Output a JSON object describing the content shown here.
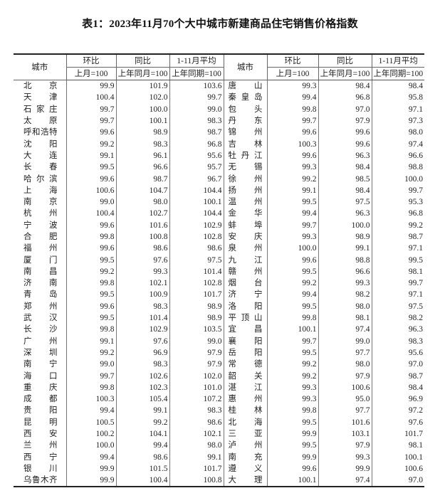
{
  "title": "表1：2023年11月70个大中城市新建商品住宅销售价格指数",
  "headers": {
    "city": "城市",
    "mom": "环比",
    "yoy": "同比",
    "avg": "1-11月平均",
    "mom_base": "上月=100",
    "yoy_base": "上年同月=100",
    "avg_base": "上年同期=100"
  },
  "rows": [
    {
      "left": [
        "北京",
        "99.9",
        "101.9",
        "103.6"
      ],
      "right": [
        "唐山",
        "99.3",
        "98.4",
        "98.4"
      ]
    },
    {
      "left": [
        "天津",
        "100.4",
        "102.0",
        "99.7"
      ],
      "right": [
        "秦皇岛",
        "99.4",
        "96.8",
        "95.8"
      ]
    },
    {
      "left": [
        "石家庄",
        "99.7",
        "100.0",
        "99.0"
      ],
      "right": [
        "包头",
        "99.8",
        "97.0",
        "97.1"
      ]
    },
    {
      "left": [
        "太原",
        "99.7",
        "100.1",
        "98.3"
      ],
      "right": [
        "丹东",
        "99.7",
        "97.9",
        "97.3"
      ]
    },
    {
      "left": [
        "呼和浩特",
        "99.6",
        "98.9",
        "98.7"
      ],
      "right": [
        "锦州",
        "99.6",
        "99.6",
        "98.0"
      ]
    },
    {
      "left": [
        "沈阳",
        "99.2",
        "98.3",
        "96.8"
      ],
      "right": [
        "吉林",
        "100.3",
        "99.6",
        "97.4"
      ]
    },
    {
      "left": [
        "大连",
        "99.1",
        "96.1",
        "95.6"
      ],
      "right": [
        "牡丹江",
        "99.6",
        "96.3",
        "96.6"
      ]
    },
    {
      "left": [
        "长春",
        "99.5",
        "96.6",
        "95.7"
      ],
      "right": [
        "无锡",
        "99.3",
        "98.4",
        "98.8"
      ]
    },
    {
      "left": [
        "哈尔滨",
        "99.6",
        "98.7",
        "96.7"
      ],
      "right": [
        "徐州",
        "99.2",
        "98.5",
        "100.0"
      ]
    },
    {
      "left": [
        "上海",
        "100.6",
        "104.7",
        "104.4"
      ],
      "right": [
        "扬州",
        "99.1",
        "98.4",
        "99.7"
      ]
    },
    {
      "left": [
        "南京",
        "99.0",
        "98.0",
        "100.1"
      ],
      "right": [
        "温州",
        "99.5",
        "97.5",
        "95.3"
      ]
    },
    {
      "left": [
        "杭州",
        "100.4",
        "102.7",
        "104.4"
      ],
      "right": [
        "金华",
        "99.4",
        "96.3",
        "96.8"
      ]
    },
    {
      "left": [
        "宁波",
        "99.6",
        "101.6",
        "102.9"
      ],
      "right": [
        "蚌埠",
        "99.7",
        "100.0",
        "99.2"
      ]
    },
    {
      "left": [
        "合肥",
        "99.8",
        "100.8",
        "102.8"
      ],
      "right": [
        "安庆",
        "99.3",
        "98.9",
        "98.7"
      ]
    },
    {
      "left": [
        "福州",
        "99.6",
        "98.6",
        "98.6"
      ],
      "right": [
        "泉州",
        "100.0",
        "99.1",
        "97.1"
      ]
    },
    {
      "left": [
        "厦门",
        "99.5",
        "97.6",
        "97.5"
      ],
      "right": [
        "九江",
        "99.6",
        "98.8",
        "99.5"
      ]
    },
    {
      "left": [
        "南昌",
        "99.2",
        "99.3",
        "101.4"
      ],
      "right": [
        "赣州",
        "99.5",
        "96.6",
        "98.1"
      ]
    },
    {
      "left": [
        "济南",
        "99.8",
        "102.1",
        "102.8"
      ],
      "right": [
        "烟台",
        "99.2",
        "99.3",
        "99.7"
      ]
    },
    {
      "left": [
        "青岛",
        "99.5",
        "100.9",
        "101.7"
      ],
      "right": [
        "济宁",
        "99.4",
        "98.2",
        "97.1"
      ]
    },
    {
      "left": [
        "郑州",
        "99.6",
        "98.3",
        "98.9"
      ],
      "right": [
        "洛阳",
        "99.5",
        "98.0",
        "97.5"
      ]
    },
    {
      "left": [
        "武汉",
        "99.5",
        "101.4",
        "98.9"
      ],
      "right": [
        "平顶山",
        "99.8",
        "98.1",
        "98.2"
      ]
    },
    {
      "left": [
        "长沙",
        "99.8",
        "102.9",
        "103.5"
      ],
      "right": [
        "宜昌",
        "100.1",
        "97.4",
        "96.3"
      ]
    },
    {
      "left": [
        "广州",
        "99.1",
        "97.6",
        "99.0"
      ],
      "right": [
        "襄阳",
        "99.7",
        "99.0",
        "98.3"
      ]
    },
    {
      "left": [
        "深圳",
        "99.2",
        "96.9",
        "97.9"
      ],
      "right": [
        "岳阳",
        "99.5",
        "97.7",
        "95.6"
      ]
    },
    {
      "left": [
        "南宁",
        "99.0",
        "98.3",
        "97.9"
      ],
      "right": [
        "常德",
        "99.2",
        "98.0",
        "97.0"
      ]
    },
    {
      "left": [
        "海口",
        "99.7",
        "102.6",
        "102.0"
      ],
      "right": [
        "韶关",
        "99.2",
        "97.9",
        "98.7"
      ]
    },
    {
      "left": [
        "重庆",
        "99.8",
        "102.3",
        "101.0"
      ],
      "right": [
        "湛江",
        "99.3",
        "100.6",
        "98.4"
      ]
    },
    {
      "left": [
        "成都",
        "100.3",
        "105.4",
        "107.2"
      ],
      "right": [
        "惠州",
        "99.3",
        "95.0",
        "96.9"
      ]
    },
    {
      "left": [
        "贵阳",
        "99.4",
        "99.1",
        "98.3"
      ],
      "right": [
        "桂林",
        "99.8",
        "97.7",
        "97.2"
      ]
    },
    {
      "left": [
        "昆明",
        "100.5",
        "99.2",
        "98.6"
      ],
      "right": [
        "北海",
        "99.5",
        "101.6",
        "97.6"
      ]
    },
    {
      "left": [
        "西安",
        "100.2",
        "104.1",
        "102.1"
      ],
      "right": [
        "三亚",
        "99.9",
        "103.1",
        "101.7"
      ]
    },
    {
      "left": [
        "兰州",
        "100.0",
        "99.4",
        "98.0"
      ],
      "right": [
        "泸州",
        "99.5",
        "97.9",
        "98.1"
      ]
    },
    {
      "left": [
        "西宁",
        "99.4",
        "98.6",
        "99.1"
      ],
      "right": [
        "南充",
        "99.9",
        "99.3",
        "100.1"
      ]
    },
    {
      "left": [
        "银川",
        "99.9",
        "101.5",
        "101.7"
      ],
      "right": [
        "遵义",
        "99.6",
        "99.9",
        "100.6"
      ]
    },
    {
      "left": [
        "乌鲁木齐",
        "99.9",
        "100.4",
        "100.8"
      ],
      "right": [
        "大理",
        "100.1",
        "97.4",
        "97.0"
      ]
    }
  ]
}
